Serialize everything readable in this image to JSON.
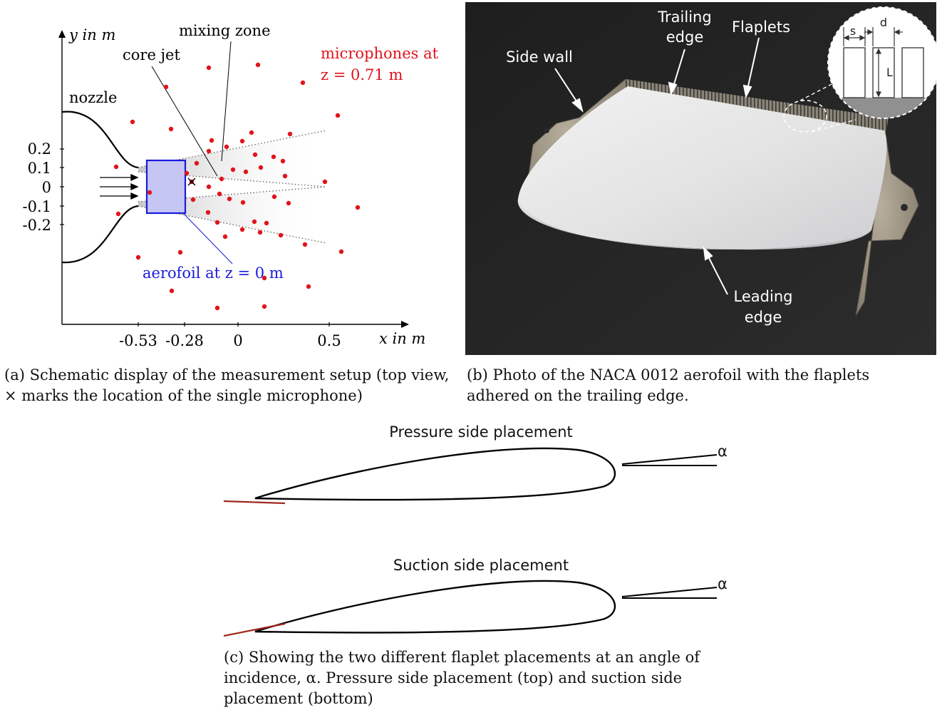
{
  "panel_a": {
    "y_axis_label": "y in m",
    "x_axis_label": "x in m",
    "y_ticks": [
      "0.2",
      "0.1",
      "0",
      "-0.1",
      "-0.2"
    ],
    "x_ticks": [
      "-0.53",
      "-0.28",
      "0",
      "0.5"
    ],
    "label_nozzle": "nozzle",
    "label_core_jet": "core jet",
    "label_mixing_zone": "mixing zone",
    "label_mics_line1": "microphones at",
    "label_mics_line2": "z = 0.71  m",
    "label_aerofoil": "aerofoil at z = 0 m",
    "caption_line1": "(a) Schematic display of the measurement setup (top view,",
    "caption_line2": "× marks the location of the single microphone)",
    "mic_color": "#e0141c",
    "aerofoil_color": "#1a1adc"
  },
  "panel_b": {
    "label_trailing_edge_1": "Trailing",
    "label_trailing_edge_2": "edge",
    "label_flaplets": "Flaplets",
    "label_side_wall": "Side wall",
    "label_leading_edge_1": "Leading",
    "label_leading_edge_2": "edge",
    "inset_s": "s",
    "inset_d": "d",
    "inset_L": "L",
    "caption_line1": "(b) Photo of the NACA 0012 aerofoil with the flaplets",
    "caption_line2": "adhered on the trailing edge."
  },
  "panel_c": {
    "title_top": "Pressure side placement",
    "title_bottom": "Suction side placement",
    "alpha_top": "α",
    "alpha_bottom": "α",
    "caption_line1": "(c) Showing the two different flaplet placements at an angle of",
    "caption_line2": "incidence, α. Pressure side placement (top) and suction side",
    "caption_line3": "placement (bottom)",
    "flaplet_color": "#a0281e"
  }
}
